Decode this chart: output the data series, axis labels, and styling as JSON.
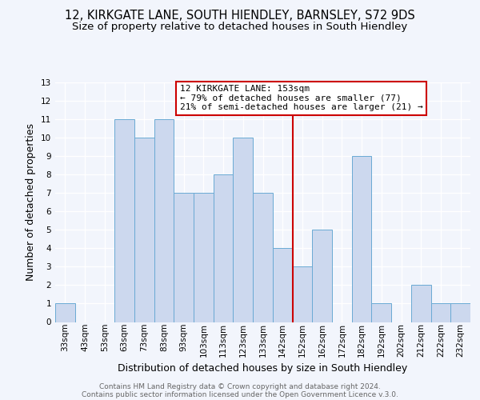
{
  "title_line1": "12, KIRKGATE LANE, SOUTH HIENDLEY, BARNSLEY, S72 9DS",
  "title_line2": "Size of property relative to detached houses in South Hiendley",
  "xlabel": "Distribution of detached houses by size in South Hiendley",
  "ylabel": "Number of detached properties",
  "footer1": "Contains HM Land Registry data © Crown copyright and database right 2024.",
  "footer2": "Contains public sector information licensed under the Open Government Licence v.3.0.",
  "bin_labels": [
    "33sqm",
    "43sqm",
    "53sqm",
    "63sqm",
    "73sqm",
    "83sqm",
    "93sqm",
    "103sqm",
    "113sqm",
    "123sqm",
    "133sqm",
    "142sqm",
    "152sqm",
    "162sqm",
    "172sqm",
    "182sqm",
    "192sqm",
    "202sqm",
    "212sqm",
    "222sqm",
    "232sqm"
  ],
  "bin_values": [
    1,
    0,
    0,
    11,
    10,
    11,
    7,
    7,
    8,
    10,
    7,
    4,
    3,
    5,
    0,
    9,
    1,
    0,
    2,
    1,
    1
  ],
  "bar_color": "#ccd8ee",
  "bar_edge_color": "#6aaad4",
  "vline_color": "#cc0000",
  "vline_position": 11.5,
  "annotation_title": "12 KIRKGATE LANE: 153sqm",
  "annotation_line1": "← 79% of detached houses are smaller (77)",
  "annotation_line2": "21% of semi-detached houses are larger (21) →",
  "annotation_box_facecolor": "#ffffff",
  "annotation_box_edgecolor": "#cc0000",
  "ylim_min": 0,
  "ylim_max": 13,
  "yticks": [
    0,
    1,
    2,
    3,
    4,
    5,
    6,
    7,
    8,
    9,
    10,
    11,
    12,
    13
  ],
  "background_color": "#f2f5fc",
  "grid_color": "#ffffff",
  "title1_fontsize": 10.5,
  "title2_fontsize": 9.5,
  "axis_label_fontsize": 9,
  "tick_fontsize": 7.5,
  "annotation_fontsize": 8,
  "footer_fontsize": 6.5
}
